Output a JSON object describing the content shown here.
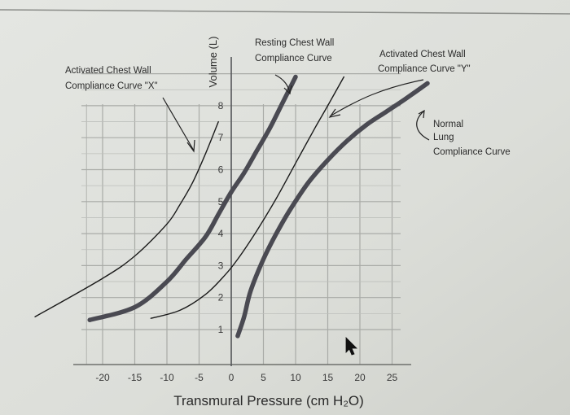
{
  "chart_data": {
    "type": "line",
    "title": "",
    "xlabel": "Transmural Pressure (cm H₂O)",
    "ylabel": "Volume (L)",
    "xlim": [
      -20,
      25
    ],
    "ylim": [
      1,
      8
    ],
    "x_ticks": [
      -20,
      -15,
      -10,
      -5,
      0,
      5,
      10,
      15,
      20,
      25
    ],
    "y_ticks": [
      1,
      2,
      3,
      4,
      5,
      6,
      7,
      8
    ],
    "grid": true,
    "series": [
      {
        "name": "Activated Chest Wall Compliance Curve \"X\"",
        "style": "thin",
        "color": "#1a1a1a",
        "x": [
          -30.5,
          -20,
          -15,
          -10,
          -8,
          -6,
          -4,
          -2
        ],
        "y": [
          1.4,
          2.6,
          3.3,
          4.3,
          4.9,
          5.6,
          6.5,
          7.5
        ]
      },
      {
        "name": "Resting Chest Wall Compliance Curve",
        "style": "thick",
        "color": "#4a4a52",
        "x": [
          -22,
          -15,
          -10,
          -7,
          -4,
          -2,
          0,
          2,
          4,
          6,
          8,
          10
        ],
        "y": [
          1.3,
          1.7,
          2.5,
          3.2,
          3.9,
          4.6,
          5.3,
          5.9,
          6.6,
          7.3,
          8.1,
          8.9
        ]
      },
      {
        "name": "Activated Chest Wall Compliance Curve \"Y\"",
        "style": "thin",
        "color": "#1a1a1a",
        "x": [
          -12.5,
          -8,
          -4,
          -1,
          1,
          4,
          7,
          10,
          13,
          15,
          17.5
        ],
        "y": [
          1.35,
          1.6,
          2.1,
          2.7,
          3.2,
          4.1,
          5.1,
          6.2,
          7.3,
          8.0,
          8.9
        ]
      },
      {
        "name": "Normal Lung Compliance Curve",
        "style": "thick",
        "color": "#4a4a52",
        "x": [
          1,
          2,
          3,
          5,
          7,
          9,
          12,
          15,
          18,
          21,
          24,
          27,
          30.5
        ],
        "y": [
          0.8,
          1.4,
          2.2,
          3.2,
          4.0,
          4.7,
          5.6,
          6.3,
          6.9,
          7.4,
          7.8,
          8.2,
          8.7
        ]
      }
    ],
    "annotations": {
      "x_curve": [
        "Activated Chest Wall",
        "Compliance Curve \"X\""
      ],
      "resting": [
        "Resting Chest Wall",
        "Compliance Curve"
      ],
      "y_curve": [
        "Activated Chest Wall",
        "Compliance Curve \"Y\""
      ],
      "normal_lung": [
        "Normal",
        "Lung",
        "Compliance Curve"
      ]
    }
  }
}
